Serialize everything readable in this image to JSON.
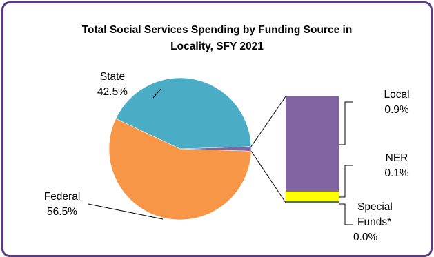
{
  "chart_data": {
    "type": "pie",
    "title_line1": "Total Social Services Spending by Funding Source in",
    "title_line2": "Locality, SFY 2021",
    "slices": [
      {
        "name": "Federal",
        "value": 56.5,
        "label": "56.5%",
        "color": "#F79646"
      },
      {
        "name": "State",
        "value": 42.5,
        "label": "42.5%",
        "color": "#4BACC6"
      },
      {
        "name": "Local",
        "value": 0.9,
        "label": "0.9%",
        "color": "#8064A2"
      },
      {
        "name": "NER",
        "value": 0.1,
        "label": "0.1%",
        "color": "#FFFF00"
      },
      {
        "name": "Special Funds*",
        "value": 0.0,
        "label": "0.0%",
        "color": "#4F7D3A"
      }
    ],
    "breakout": {
      "type": "bar-of-pie",
      "slices": [
        "Local",
        "NER",
        "Special Funds*"
      ]
    },
    "labels": {
      "state": {
        "name": "State",
        "pct": "42.5%"
      },
      "federal": {
        "name": "Federal",
        "pct": "56.5%"
      },
      "local": {
        "name": "Local",
        "pct": "0.9%"
      },
      "ner": {
        "name": "NER",
        "pct": "0.1%"
      },
      "special": {
        "name_line1": "Special",
        "name_line2": "Funds*",
        "pct": "0.0%"
      }
    }
  },
  "colors": {
    "frame": "#5b3b7c",
    "leader": "#000000"
  }
}
